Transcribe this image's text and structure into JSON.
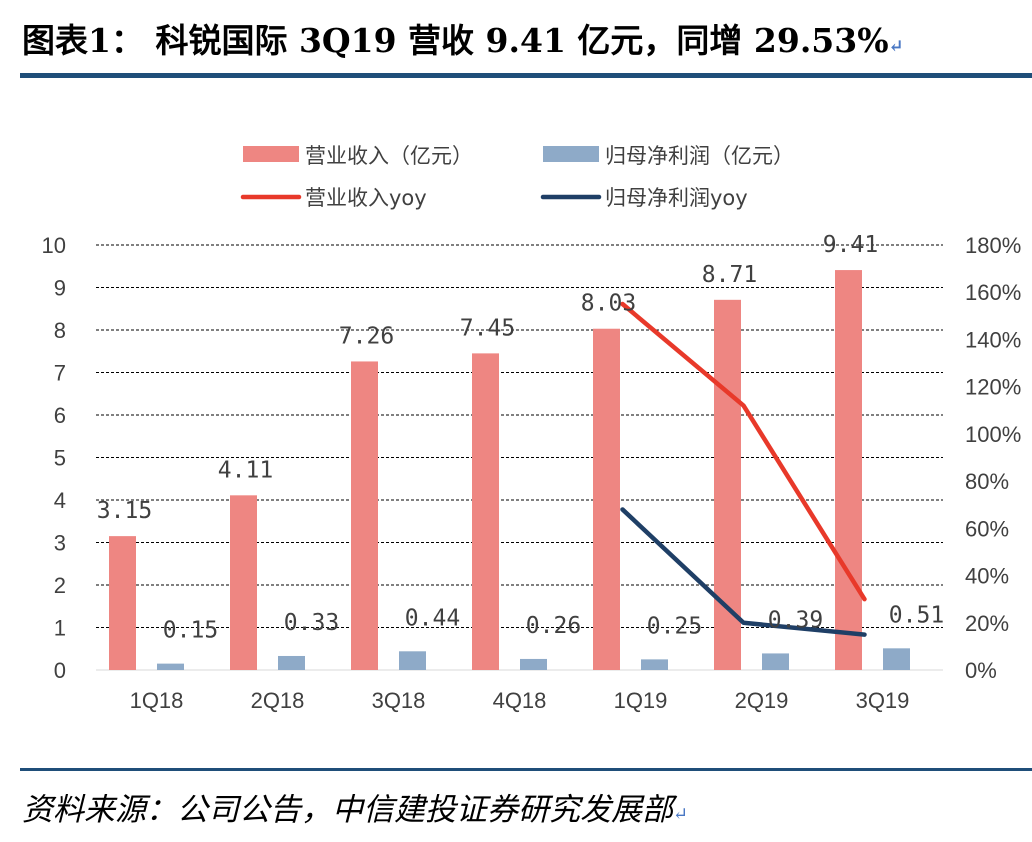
{
  "page": {
    "title": "图表1： 科锐国际 3Q19 营收 9.41 亿元，同增 29.53%",
    "source": "资料来源：公司公告，中信建投证券研究发展部",
    "return_mark": "↵"
  },
  "colors": {
    "revenue_bar": "#ee8682",
    "profit_bar": "#8eaac8",
    "revenue_yoy_line": "#e8392a",
    "profit_yoy_line": "#1f3f66",
    "gridline": "#000000",
    "rule": "#1f4e79"
  },
  "chart_data": {
    "type": "bar",
    "categories": [
      "1Q18",
      "2Q18",
      "3Q18",
      "4Q18",
      "1Q19",
      "2Q19",
      "3Q19"
    ],
    "series": [
      {
        "name": "营业收入（亿元）",
        "kind": "bar",
        "axis": "left",
        "values": [
          3.15,
          4.11,
          7.26,
          7.45,
          8.03,
          8.71,
          9.41
        ],
        "labels": [
          "3.15",
          "4.11",
          "7.26",
          "7.45",
          "8.03",
          "8.71",
          "9.41"
        ]
      },
      {
        "name": "归母净利润（亿元）",
        "kind": "bar",
        "axis": "left",
        "values": [
          0.15,
          0.33,
          0.44,
          0.26,
          0.25,
          0.39,
          0.51
        ],
        "labels": [
          "0.15",
          "0.33",
          "0.44",
          "0.26",
          "0.25",
          "0.39",
          "0.51"
        ]
      },
      {
        "name": "营业收入yoy",
        "kind": "line",
        "axis": "right",
        "values": [
          null,
          null,
          null,
          null,
          1.55,
          1.12,
          0.3
        ]
      },
      {
        "name": "归母净利润yoy",
        "kind": "line",
        "axis": "right",
        "values": [
          null,
          null,
          null,
          null,
          0.68,
          0.2,
          0.15
        ]
      }
    ],
    "y_left": {
      "min": 0,
      "max": 10,
      "ticks": [
        "0",
        "1",
        "2",
        "3",
        "4",
        "5",
        "6",
        "7",
        "8",
        "9",
        "10"
      ]
    },
    "y_right": {
      "min": 0,
      "max": 1.8,
      "ticks": [
        "0%",
        "20%",
        "40%",
        "60%",
        "80%",
        "100%",
        "120%",
        "140%",
        "160%",
        "180%"
      ]
    },
    "grid": "horizontal dashed",
    "legend_position": "top"
  }
}
